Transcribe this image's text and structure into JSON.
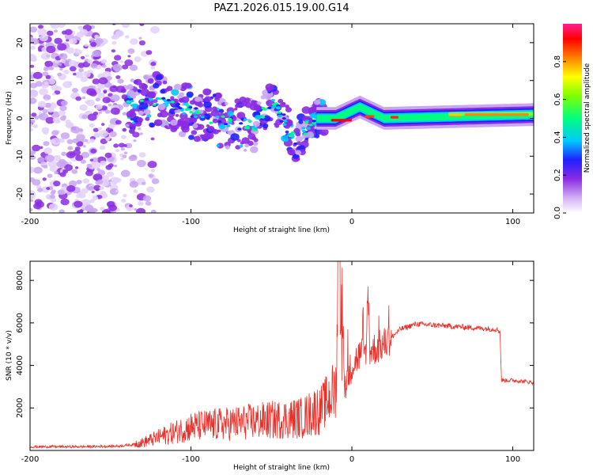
{
  "figure": {
    "title": "PAZ1.2026.015.19.00.G14"
  },
  "chart_data": [
    {
      "type": "heatmap",
      "name": "spectrogram",
      "xlabel": "Height of straight line (km)",
      "ylabel": "Frequency (Hz)",
      "xlim": [
        -200,
        113
      ],
      "ylim": [
        -25,
        25
      ],
      "xticks": [
        "-200",
        "-100",
        "0",
        "100"
      ],
      "xtick_values": [
        -200,
        -100,
        0,
        100
      ],
      "yticks": [
        "20",
        "10",
        "0",
        "-10",
        "-20"
      ],
      "ytick_values": [
        20,
        10,
        0,
        -10,
        -20
      ],
      "colorbar": {
        "label": "Normalized spectral amplitude",
        "range": [
          0,
          1
        ],
        "ticks": [
          "0.0",
          "0.2",
          "0.4",
          "0.6",
          "0.8"
        ],
        "tick_values": [
          0.0,
          0.2,
          0.4,
          0.6,
          0.8
        ]
      },
      "ridge": {
        "description_points": [
          {
            "x": -140,
            "y": 3
          },
          {
            "x": -120,
            "y": 5
          },
          {
            "x": -100,
            "y": 2
          },
          {
            "x": -80,
            "y": -1
          },
          {
            "x": -60,
            "y": -2
          },
          {
            "x": -50,
            "y": 5
          },
          {
            "x": -40,
            "y": -2
          },
          {
            "x": -35,
            "y": -7
          },
          {
            "x": -25,
            "y": 0
          },
          {
            "x": -10,
            "y": 0
          },
          {
            "x": 5,
            "y": 3
          },
          {
            "x": 20,
            "y": 0
          },
          {
            "x": 113,
            "y": 1
          }
        ]
      }
    },
    {
      "type": "line",
      "name": "snr",
      "xlabel": "Height of straight line (km)",
      "ylabel": "SNR (10 * v/v)",
      "xlim": [
        -200,
        113
      ],
      "ylim": [
        0,
        8900
      ],
      "xticks": [
        "-200",
        "-100",
        "0",
        "100"
      ],
      "xtick_values": [
        -200,
        -100,
        0,
        100
      ],
      "yticks": [
        "8000",
        "6000",
        "4000",
        "2000"
      ],
      "ytick_values": [
        8000,
        6000,
        4000,
        2000
      ],
      "color": "#e8312a",
      "series": [
        {
          "name": "SNR",
          "x": [
            -200,
            -180,
            -160,
            -145,
            -130,
            -120,
            -110,
            -100,
            -90,
            -80,
            -70,
            -60,
            -50,
            -40,
            -30,
            -20,
            -15,
            -10,
            -8,
            -5,
            0,
            5,
            10,
            15,
            20,
            30,
            40,
            50,
            60,
            70,
            80,
            90,
            92,
            93,
            100,
            113
          ],
          "y": [
            150,
            150,
            160,
            180,
            300,
            500,
            700,
            900,
            950,
            1000,
            1050,
            1100,
            1150,
            1200,
            1250,
            1600,
            2000,
            2400,
            8900,
            3000,
            4000,
            4500,
            4700,
            4800,
            5000,
            5700,
            5950,
            5900,
            5850,
            5800,
            5750,
            5700,
            5600,
            3300,
            3300,
            3200
          ]
        }
      ]
    }
  ]
}
